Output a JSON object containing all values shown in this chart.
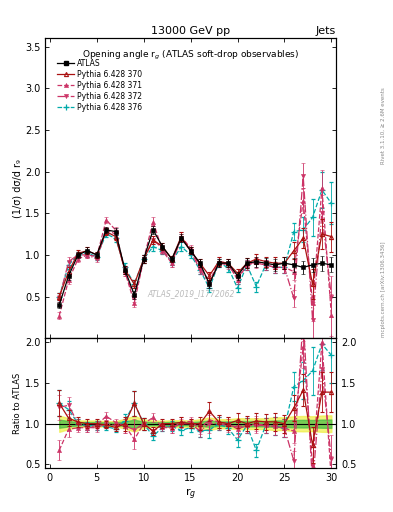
{
  "title_top": "13000 GeV pp",
  "title_right": "Jets",
  "plot_title": "Opening angle r$_g$ (ATLAS soft-drop observables)",
  "xlabel": "r$_g$",
  "ylabel_main": "(1/σ) dσ/d r₉",
  "ylabel_ratio": "Ratio to ATLAS",
  "right_label_top": "Rivet 3.1.10, ≥ 2.6M events",
  "right_label_bottom": "mcplots.cern.ch [arXiv:1306.3436]",
  "watermark": "ATLAS_2019_I1772062",
  "atlas_x": [
    1,
    2,
    3,
    4,
    5,
    6,
    7,
    8,
    9,
    10,
    11,
    12,
    13,
    14,
    15,
    16,
    17,
    18,
    19,
    20,
    21,
    22,
    23,
    24,
    25,
    26,
    27,
    28,
    29,
    30
  ],
  "atlas_y": [
    0.4,
    0.75,
    1.0,
    1.05,
    1.0,
    1.3,
    1.28,
    0.82,
    0.52,
    0.95,
    1.3,
    1.1,
    0.95,
    1.2,
    1.05,
    0.9,
    0.65,
    0.9,
    0.9,
    0.75,
    0.9,
    0.92,
    0.9,
    0.88,
    0.9,
    0.88,
    0.85,
    0.88,
    0.9,
    0.88
  ],
  "atlas_yerr": [
    0.04,
    0.05,
    0.04,
    0.04,
    0.04,
    0.04,
    0.04,
    0.05,
    0.05,
    0.05,
    0.05,
    0.04,
    0.04,
    0.05,
    0.04,
    0.05,
    0.05,
    0.05,
    0.05,
    0.05,
    0.06,
    0.06,
    0.06,
    0.07,
    0.07,
    0.08,
    0.08,
    0.08,
    0.09,
    0.09
  ],
  "py370_x": [
    1,
    2,
    3,
    4,
    5,
    6,
    7,
    8,
    9,
    10,
    11,
    12,
    13,
    14,
    15,
    16,
    17,
    18,
    19,
    20,
    21,
    22,
    23,
    24,
    25,
    26,
    27,
    28,
    29,
    30
  ],
  "py370_y": [
    0.5,
    0.8,
    1.02,
    1.05,
    1.0,
    1.28,
    1.22,
    0.82,
    0.65,
    0.95,
    1.18,
    1.1,
    0.95,
    1.22,
    1.05,
    0.9,
    0.75,
    0.92,
    0.9,
    0.78,
    0.9,
    0.95,
    0.92,
    0.9,
    0.9,
    1.05,
    1.2,
    0.65,
    1.25,
    1.22
  ],
  "py370_yerr": [
    0.04,
    0.05,
    0.04,
    0.04,
    0.04,
    0.04,
    0.04,
    0.05,
    0.05,
    0.05,
    0.05,
    0.04,
    0.04,
    0.05,
    0.04,
    0.05,
    0.05,
    0.05,
    0.05,
    0.05,
    0.06,
    0.06,
    0.06,
    0.07,
    0.07,
    0.1,
    0.12,
    0.18,
    0.18,
    0.18
  ],
  "py371_x": [
    1,
    2,
    3,
    4,
    5,
    6,
    7,
    8,
    9,
    10,
    11,
    12,
    13,
    14,
    15,
    16,
    17,
    18,
    19,
    20,
    21,
    22,
    23,
    24,
    25,
    26,
    27,
    28,
    29,
    30
  ],
  "py371_y": [
    0.27,
    0.7,
    0.95,
    1.0,
    0.98,
    1.42,
    1.3,
    0.8,
    0.42,
    0.95,
    1.4,
    1.05,
    0.9,
    1.22,
    1.08,
    0.85,
    0.68,
    0.92,
    0.9,
    0.7,
    0.88,
    0.92,
    0.88,
    0.85,
    0.85,
    0.8,
    1.65,
    0.42,
    1.8,
    0.28
  ],
  "py371_yerr": [
    0.04,
    0.05,
    0.04,
    0.04,
    0.04,
    0.04,
    0.04,
    0.05,
    0.05,
    0.05,
    0.05,
    0.04,
    0.04,
    0.05,
    0.04,
    0.05,
    0.05,
    0.05,
    0.05,
    0.05,
    0.06,
    0.06,
    0.06,
    0.07,
    0.07,
    0.1,
    0.15,
    0.22,
    0.22,
    0.25
  ],
  "py372_x": [
    1,
    2,
    3,
    4,
    5,
    6,
    7,
    8,
    9,
    10,
    11,
    12,
    13,
    14,
    15,
    16,
    17,
    18,
    19,
    20,
    21,
    22,
    23,
    24,
    25,
    26,
    27,
    28,
    29,
    30
  ],
  "py372_y": [
    0.48,
    0.92,
    1.0,
    1.0,
    0.95,
    1.3,
    1.25,
    0.8,
    0.48,
    0.95,
    1.18,
    1.08,
    0.9,
    1.2,
    1.05,
    0.82,
    0.65,
    0.9,
    0.88,
    0.72,
    0.88,
    0.9,
    0.88,
    0.85,
    0.85,
    0.48,
    1.95,
    0.22,
    1.5,
    0.5
  ],
  "py372_yerr": [
    0.04,
    0.05,
    0.04,
    0.04,
    0.04,
    0.04,
    0.04,
    0.05,
    0.05,
    0.05,
    0.05,
    0.04,
    0.04,
    0.05,
    0.04,
    0.05,
    0.05,
    0.05,
    0.05,
    0.05,
    0.06,
    0.06,
    0.06,
    0.07,
    0.07,
    0.1,
    0.15,
    0.22,
    0.22,
    0.25
  ],
  "py376_x": [
    1,
    2,
    3,
    4,
    5,
    6,
    7,
    8,
    9,
    10,
    11,
    12,
    13,
    14,
    15,
    16,
    17,
    18,
    19,
    20,
    21,
    22,
    23,
    24,
    25,
    26,
    27,
    28,
    29,
    30
  ],
  "py376_y": [
    0.5,
    0.88,
    1.0,
    1.02,
    0.98,
    1.25,
    1.2,
    0.85,
    0.65,
    0.95,
    1.1,
    1.05,
    0.92,
    1.1,
    1.0,
    0.82,
    0.6,
    0.9,
    0.85,
    0.6,
    0.88,
    0.62,
    0.88,
    0.85,
    0.85,
    1.28,
    1.3,
    1.45,
    1.78,
    1.62
  ],
  "py376_yerr": [
    0.04,
    0.05,
    0.04,
    0.04,
    0.04,
    0.04,
    0.04,
    0.05,
    0.05,
    0.05,
    0.05,
    0.04,
    0.04,
    0.05,
    0.04,
    0.05,
    0.05,
    0.05,
    0.05,
    0.05,
    0.06,
    0.06,
    0.06,
    0.07,
    0.07,
    0.1,
    0.15,
    0.22,
    0.22,
    0.25
  ],
  "c_atlas": "#000000",
  "c_370": "#aa1111",
  "c_371": "#cc3366",
  "c_372": "#cc3366",
  "c_376": "#00aaaa",
  "ylim_main": [
    0.0,
    3.6
  ],
  "ylim_ratio": [
    0.45,
    2.05
  ],
  "xlim": [
    -0.5,
    30.5
  ],
  "yticks_main": [
    0.5,
    1.0,
    1.5,
    2.0,
    2.5,
    3.0,
    3.5
  ],
  "yticks_ratio": [
    0.5,
    1.0,
    1.5,
    2.0
  ],
  "xticks": [
    0,
    5,
    10,
    15,
    20,
    25,
    30
  ]
}
